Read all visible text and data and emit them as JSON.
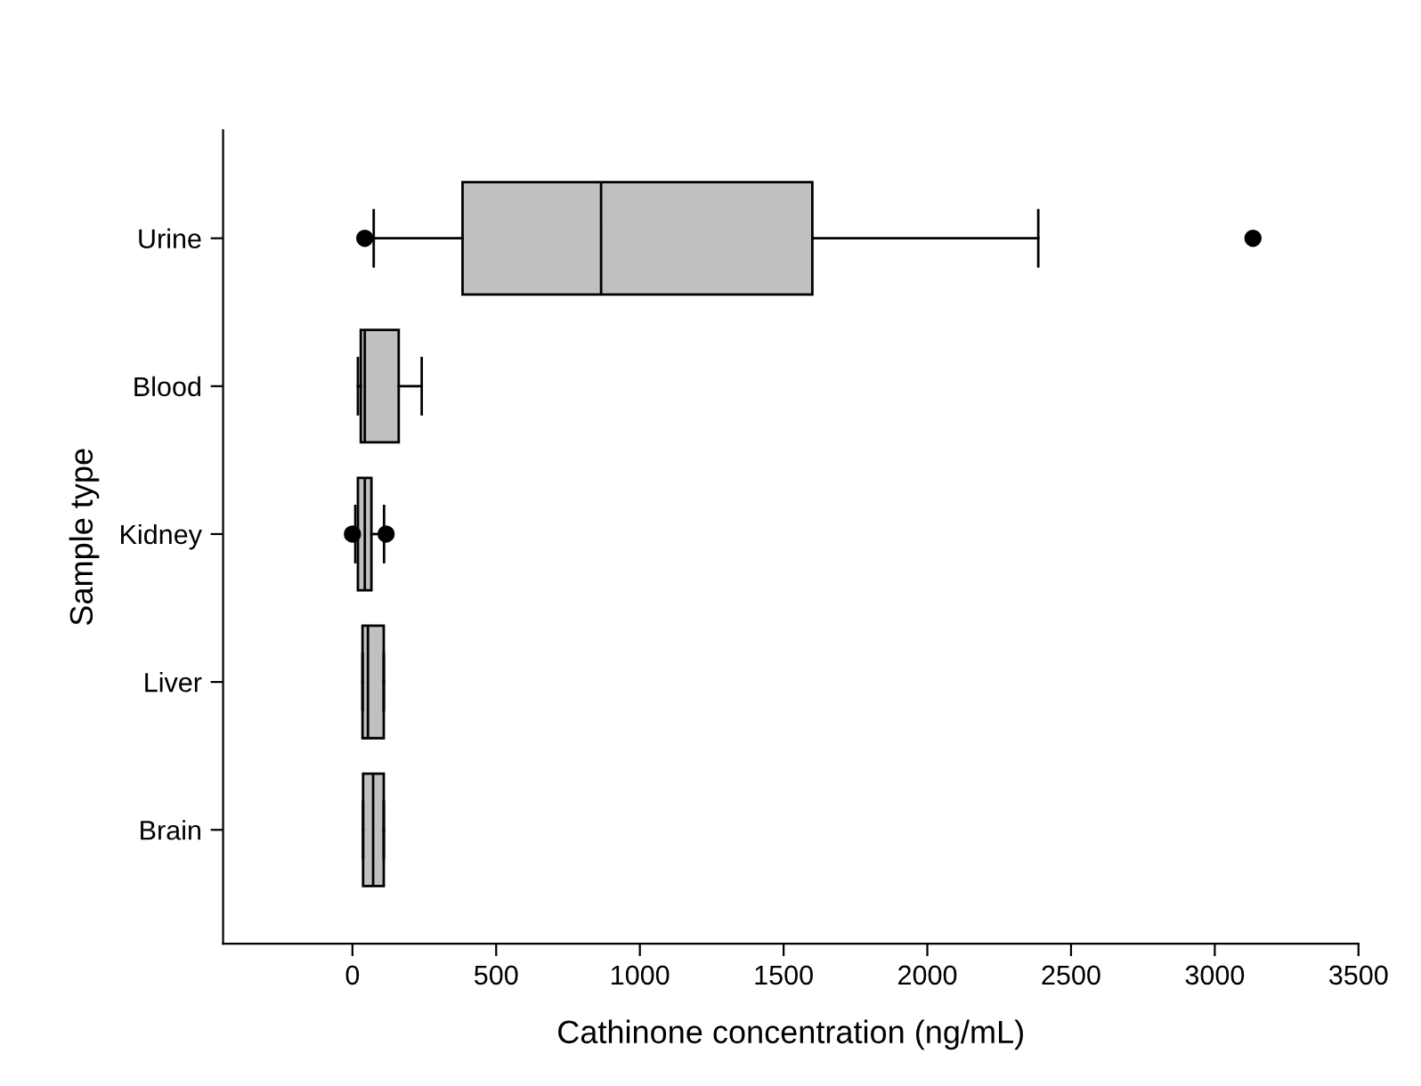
{
  "chart_data": {
    "type": "box",
    "orientation": "horizontal",
    "xlabel": "Cathinone concentration (ng/mL)",
    "ylabel": "Sample type",
    "categories": [
      "Urine",
      "Blood",
      "Kidney",
      "Liver",
      "Brain"
    ],
    "color": "#c0c0c0",
    "boxes": [
      {
        "low": 74,
        "q1": 383,
        "median": 865,
        "q3": 1600,
        "high": 2386,
        "outliers": [
          43,
          3133
        ]
      },
      {
        "low": 19,
        "q1": 29,
        "median": 43,
        "q3": 161,
        "high": 241
      },
      {
        "low": 10,
        "q1": 19,
        "median": 43,
        "q3": 66,
        "high": 110,
        "outliers": [
          0,
          117
        ]
      },
      {
        "low": 35,
        "q1": 35,
        "median": 54,
        "q3": 109,
        "high": 109
      },
      {
        "low": 37,
        "q1": 37,
        "median": 72,
        "q3": 109,
        "high": 109
      }
    ],
    "xlim": [
      -450,
      3500
    ],
    "xticks": [
      0,
      500,
      1000,
      1500,
      2000,
      2500,
      3000,
      3500
    ],
    "grid": false
  }
}
